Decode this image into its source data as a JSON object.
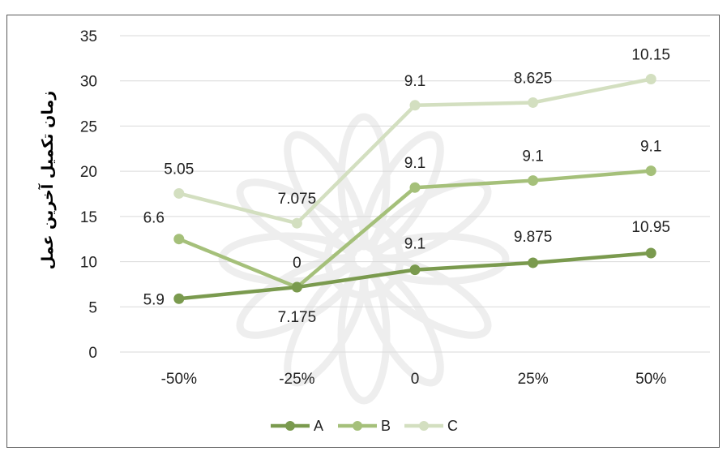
{
  "chart_data": {
    "type": "line",
    "ylabel": "زمان تکمیل آخرین عمل",
    "xlabel": "",
    "categories": [
      "-50%",
      "-25%",
      "0",
      "25%",
      "50%"
    ],
    "yticks": [
      "0",
      "5",
      "10",
      "15",
      "20",
      "25",
      "30",
      "35"
    ],
    "ylim": [
      0,
      35
    ],
    "grid": true,
    "legend_position": "bottom",
    "series": [
      {
        "name": "A",
        "color": "#7a9a4e",
        "values": [
          5.9,
          7.175,
          9.1,
          9.875,
          10.95
        ],
        "labels": [
          "5.9",
          "7.175",
          "9.1",
          "9.875",
          "10.95"
        ]
      },
      {
        "name": "B",
        "color": "#a5c07a",
        "values": [
          12.5,
          7.175,
          18.2,
          18.975,
          20.05
        ],
        "labels": [
          "6.6",
          "0",
          "9.1",
          "9.1",
          "9.1"
        ]
      },
      {
        "name": "C",
        "color": "#d3dfc0",
        "values": [
          17.55,
          14.25,
          27.3,
          27.6,
          30.2
        ],
        "labels": [
          "5.05",
          "7.075",
          "9.1",
          "8.625",
          "10.15"
        ]
      }
    ]
  }
}
